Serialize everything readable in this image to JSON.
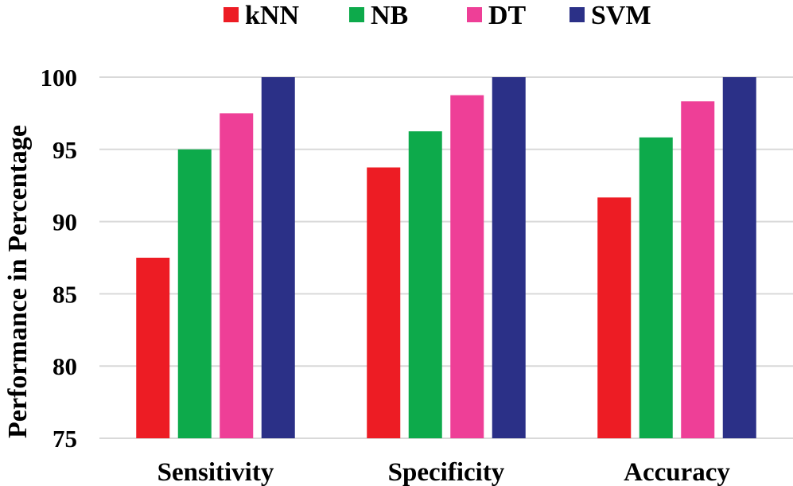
{
  "chart_data": {
    "type": "bar",
    "title": "",
    "xlabel": "",
    "ylabel": "Performance in Percentage",
    "ylim": [
      75,
      100
    ],
    "yticks": [
      75,
      80,
      85,
      90,
      95,
      100
    ],
    "grid": true,
    "legend_position": "top",
    "categories": [
      "Sensitivity",
      "Specificity",
      "Accuracy"
    ],
    "series": [
      {
        "name": "kNN",
        "color": "#ed1c24",
        "values": [
          87.5,
          93.75,
          91.67
        ]
      },
      {
        "name": "NB",
        "color": "#0daa4b",
        "values": [
          95.0,
          96.25,
          95.83
        ]
      },
      {
        "name": "DT",
        "color": "#ee3f97",
        "values": [
          97.5,
          98.75,
          98.33
        ]
      },
      {
        "name": "SVM",
        "color": "#2b3087",
        "values": [
          100,
          100,
          100
        ]
      }
    ]
  }
}
